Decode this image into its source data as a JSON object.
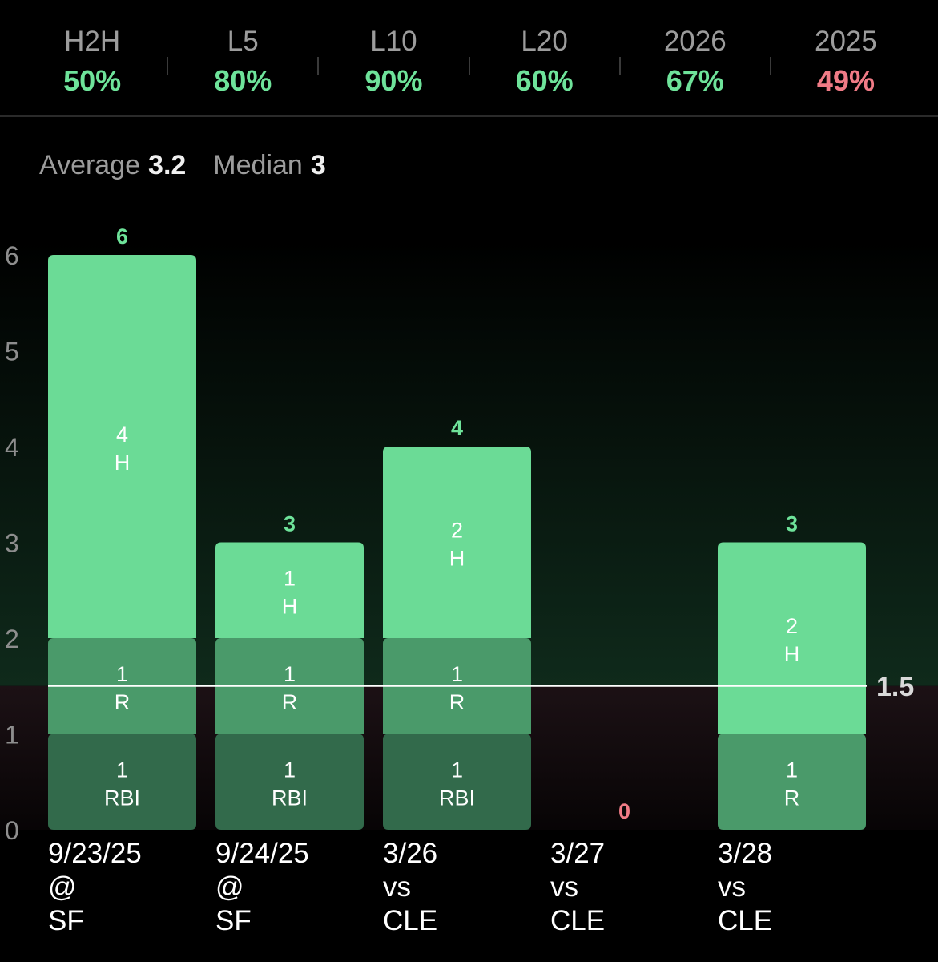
{
  "header": {
    "stats": [
      {
        "label": "H2H",
        "value": "50%",
        "color": "#6ee39a"
      },
      {
        "label": "L5",
        "value": "80%",
        "color": "#6ee39a"
      },
      {
        "label": "L10",
        "value": "90%",
        "color": "#6ee39a"
      },
      {
        "label": "L20",
        "value": "60%",
        "color": "#6ee39a"
      },
      {
        "label": "2026",
        "value": "67%",
        "color": "#6ee39a"
      },
      {
        "label": "2025",
        "value": "49%",
        "color": "#f07b86"
      }
    ]
  },
  "summary": {
    "average_label": "Average",
    "average_value": "3.2",
    "median_label": "Median",
    "median_value": "3"
  },
  "chart_data": {
    "type": "bar",
    "stacked": true,
    "ylim": [
      0,
      6
    ],
    "yticks": [
      "0",
      "1",
      "2",
      "3",
      "4",
      "5",
      "6"
    ],
    "threshold": 1.5,
    "threshold_label": "1.5",
    "colors": {
      "H": "#6bdb96",
      "R": "#4a9a6a",
      "RBI": "#326a4b",
      "over": "#6ee39a",
      "under": "#f07b86"
    },
    "bars": [
      {
        "date": "9/23/25",
        "loc": "@",
        "opp": "SF",
        "total": 6,
        "segments": [
          {
            "stat": "RBI",
            "value": 1
          },
          {
            "stat": "R",
            "value": 1
          },
          {
            "stat": "H",
            "value": 4
          }
        ]
      },
      {
        "date": "9/24/25",
        "loc": "@",
        "opp": "SF",
        "total": 3,
        "segments": [
          {
            "stat": "RBI",
            "value": 1
          },
          {
            "stat": "R",
            "value": 1
          },
          {
            "stat": "H",
            "value": 1
          }
        ]
      },
      {
        "date": "3/26",
        "loc": "vs",
        "opp": "CLE",
        "total": 4,
        "segments": [
          {
            "stat": "RBI",
            "value": 1
          },
          {
            "stat": "R",
            "value": 1
          },
          {
            "stat": "H",
            "value": 2
          }
        ]
      },
      {
        "date": "3/27",
        "loc": "vs",
        "opp": "CLE",
        "total": 0,
        "segments": []
      },
      {
        "date": "3/28",
        "loc": "vs",
        "opp": "CLE",
        "total": 3,
        "segments": [
          {
            "stat": "R",
            "value": 1
          },
          {
            "stat": "H",
            "value": 2
          }
        ]
      }
    ]
  }
}
